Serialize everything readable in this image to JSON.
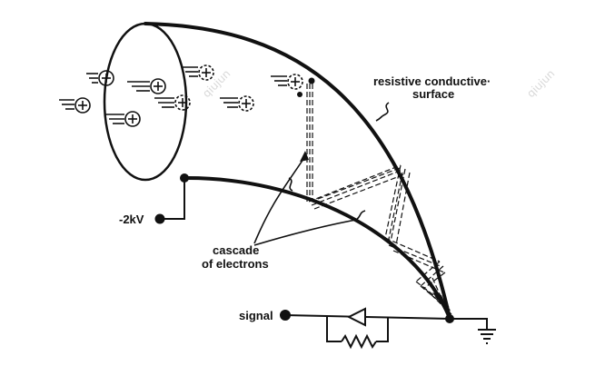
{
  "labels": {
    "surface_line1": "resistive conductive·",
    "surface_line2": "surface",
    "cascade_line1": "cascade",
    "cascade_line2": "of electrons",
    "voltage": "-2kV",
    "signal": "signal"
  },
  "watermark": "qiujun",
  "colors": {
    "ink": "#111111",
    "background": "#ffffff",
    "watermark": "#d9d9d9"
  }
}
